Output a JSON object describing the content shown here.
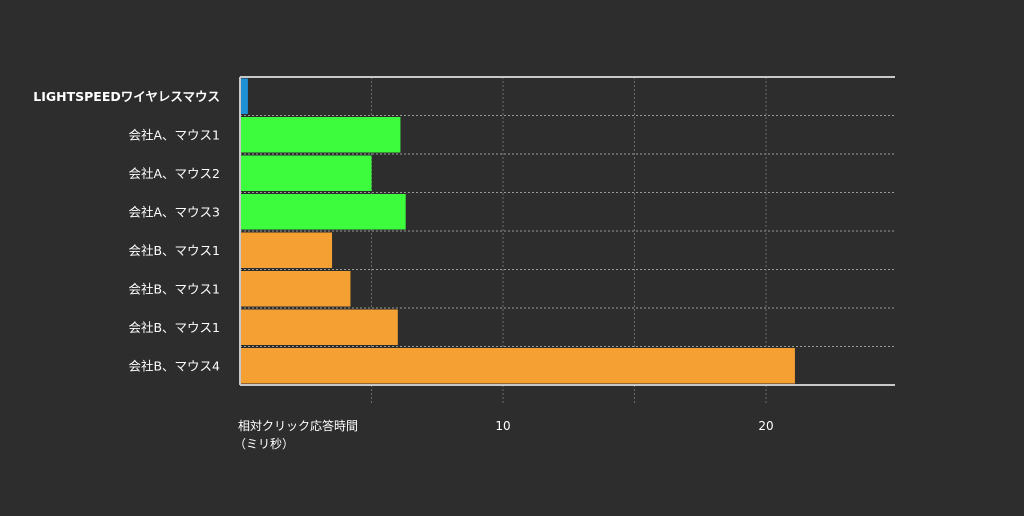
{
  "chart_data": {
    "type": "bar",
    "orientation": "horizontal",
    "categories": [
      "LIGHTSPEEDワイヤレスマウス",
      "会社A、マウス1",
      "会社A、マウス2",
      "会社A、マウス3",
      "会社B、マウス1",
      "会社B、マウス1",
      "会社B、マウス1",
      "会社B、マウス4"
    ],
    "values": [
      0.3,
      6.1,
      5.0,
      6.3,
      3.5,
      4.2,
      6.0,
      21.1
    ],
    "bar_colors": [
      "#1e90d6",
      "#3dfb3d",
      "#3dfb3d",
      "#3dfb3d",
      "#f5a033",
      "#f5a033",
      "#f5a033",
      "#f5a033"
    ],
    "title": "",
    "xlabel": "相対クリック応答時間",
    "xlabel_unit": "（ミリ秒）",
    "ylabel": "",
    "xlim": [
      0,
      25
    ],
    "x_ticks": [
      10,
      20
    ],
    "x_gridlines": [
      5,
      10,
      15,
      20
    ],
    "grid": "dashed",
    "legend": "none",
    "colors": {
      "background": "#2d2d2d",
      "axis": "#c8c8c8",
      "grid": "#9a9a9a",
      "text": "#ffffff"
    }
  }
}
